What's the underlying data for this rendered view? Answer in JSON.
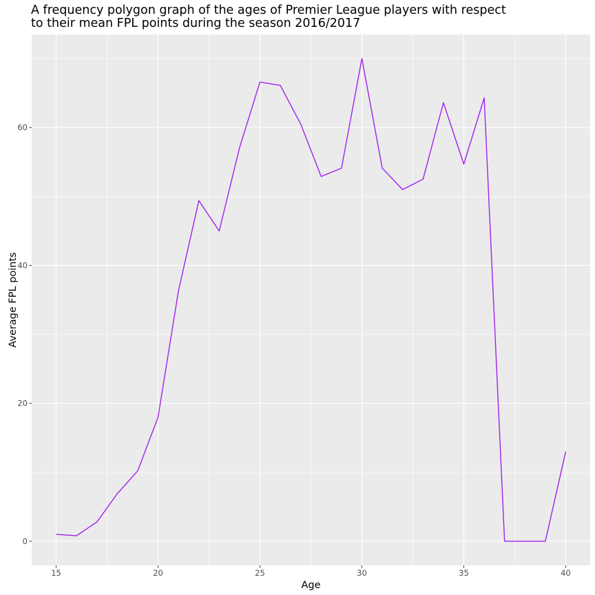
{
  "chart_data": {
    "type": "line",
    "title": "A frequency polygon graph of the ages of Premier League players with respect to their mean FPL points during the season 2016/2017",
    "title_lines": [
      "A frequency polygon graph of the ages of Premier League players with respect",
      "to their mean FPL points during the season 2016/2017"
    ],
    "xlabel": "Age",
    "ylabel": "Average FPL points",
    "xlim": [
      13.8,
      41.2
    ],
    "ylim": [
      -3.5,
      73.5
    ],
    "x_ticks": [
      15,
      20,
      25,
      30,
      35,
      40
    ],
    "y_ticks": [
      0,
      20,
      40,
      60
    ],
    "grid": true,
    "line_color": "#a020f0",
    "panel_color": "#ebebeb",
    "series": [
      {
        "x": [
          15,
          16,
          17,
          18,
          19,
          20,
          21,
          22,
          23,
          24,
          25,
          26,
          27,
          28,
          29,
          30,
          31,
          32,
          33,
          34,
          35,
          36,
          37,
          38,
          39,
          40
        ],
        "values": [
          1.0,
          0.8,
          2.8,
          6.9,
          10.2,
          18.0,
          36.3,
          49.4,
          45.0,
          57.1,
          66.6,
          66.1,
          60.5,
          52.9,
          54.1,
          70.0,
          54.1,
          51.0,
          52.5,
          63.6,
          54.7,
          64.3,
          0.0,
          0.0,
          0.0,
          13.0
        ]
      }
    ]
  }
}
